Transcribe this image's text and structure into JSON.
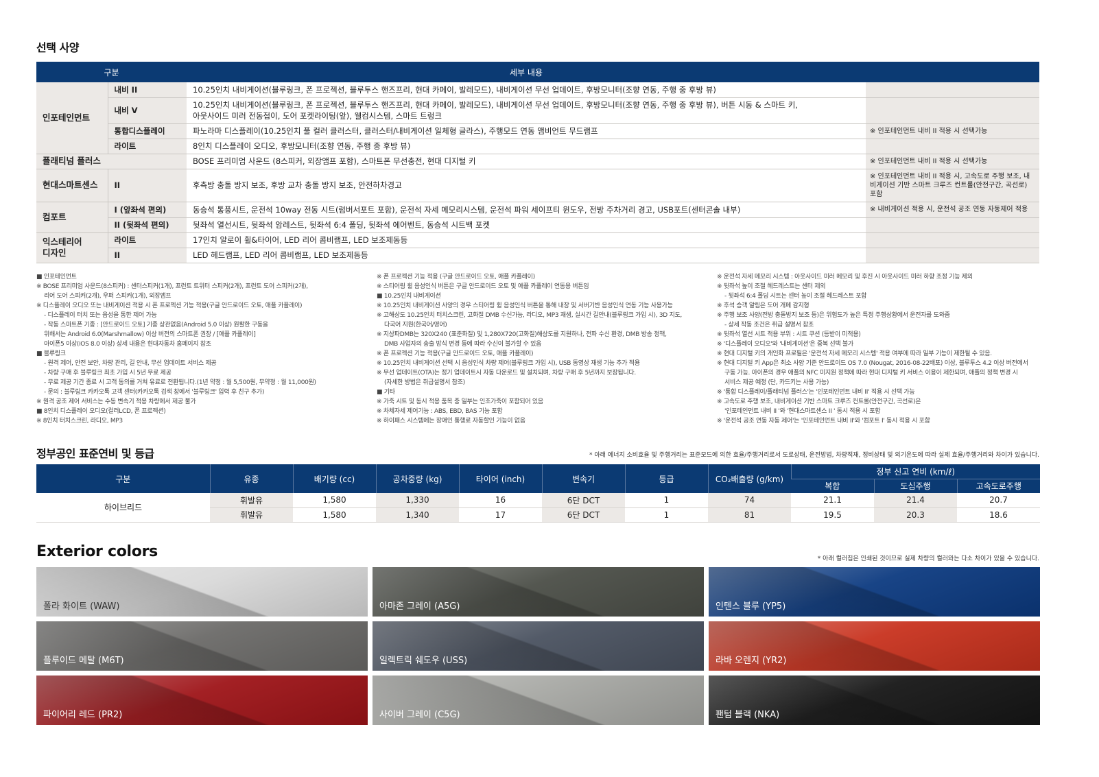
{
  "options": {
    "title": "선택 사양",
    "headers": [
      "구분",
      "세부 내용"
    ],
    "rows": [
      {
        "group": "인포테인먼트",
        "sub": "내비 II",
        "content": "10.25인치 내비게이션(블루링크, 폰 프로젝션, 블루투스 핸즈프리, 현대 카페이, 발레모드), 내비게이션 무선 업데이트, 후방모니터(조향 연동, 주행 중 후방 뷰)",
        "note": ""
      },
      {
        "sub": "내비 V",
        "content": "10.25인치 내비게이션(블루링크, 폰 프로젝션, 블루투스 핸즈프리, 현대 카페이, 발레모드), 내비게이션 무선 업데이트, 후방모니터(조향 연동, 주행 중 후방 뷰), 버튼 시동 & 스마트 키,",
        "content2": "아웃사이드 미러 전동접이, 도어 포켓라이팅(앞), 웰컴시스템, 스마트 트렁크",
        "note": ""
      },
      {
        "sub": "통합디스플레이",
        "content": "파노라마 디스플레이(10.25인치 풀 컬러 클러스터, 클러스터/내비게이션 일체형 글라스), 주행모드 연동 앰비언트 무드램프",
        "note": "※ 인포테인먼트 내비 II 적용 시 선택가능"
      },
      {
        "sub": "라이트",
        "content": "8인치 디스플레이 오디오, 후방모니터(조향 연동, 주행 중 후방 뷰)",
        "note": ""
      },
      {
        "group": "플래티넘 플러스",
        "content": "BOSE 프리미엄 사운드 (8스피커, 외장앰프 포함), 스마트폰 무선충전, 현대 디지털 키",
        "note": "※ 인포테인먼트 내비 II 적용 시 선택가능"
      },
      {
        "group": "현대스마트센스",
        "sub": "II",
        "content": "후측방 충돌 방지 보조, 후방 교차 충돌 방지 보조, 안전하차경고",
        "note": "※ 인포테인먼트 내비 II 적용 시, 고속도로 주행 보조, 내비게이션 기반 스마트 크루즈 컨트롤(안전구간, 곡선로) 포함"
      },
      {
        "group": "컴포트",
        "sub": "I (앞좌석 편의)",
        "content": "동승석 통풍시트, 운전석 10way 전동 시트(럼버서포트 포함), 운전석 자세 메모리시스템, 운전석 파워 세이프티 윈도우, 전방 주차거리 경고, USB포트(센터콘솔 내부)",
        "note": "※ 내비게이션 적용 시, 운전석 공조 연동 자동제어 적용"
      },
      {
        "sub": "II (뒷좌석 편의)",
        "content": "뒷좌석 열선시트, 뒷좌석 암레스트, 뒷좌석 6:4 폴딩, 뒷좌석 에어벤트, 동승석 시트백 포켓",
        "note": ""
      },
      {
        "group": "익스테리어 디자인",
        "sub": "라이트",
        "content": "17인치 알로이 휠&타이어, LED 리어 콤비램프, LED 보조제동등",
        "note": ""
      },
      {
        "sub": "II",
        "content": "LED 헤드램프, LED 리어 콤비램프, LED 보조제동등",
        "note": ""
      }
    ]
  },
  "notes": [
    [
      {
        "t": "■ 인포테인먼트"
      },
      {
        "t": "※ BOSE 프리미엄 사운드(8스피커) : 센터스피커(1개), 프런트 트위터 스피커(2개), 프런트 도어 스피커(2개),"
      },
      {
        "t": "리어 도어 스피커(2개), 우퍼 스피커(1개), 외장앰프",
        "i": true
      },
      {
        "t": "※ 디스플레이 오디오 또는 내비게이션 적용 시 폰 프로젝션 기능 적용(구글 안드로이드 오토, 애플 카플레이)"
      },
      {
        "t": "- 디스플레이 터치 또는 음성을 통한 제어 가능",
        "i": true
      },
      {
        "t": "- 작동 스마트폰 기종 : [안드로이드 오토] 기종 상관없음(Android 5.0 이상) 원활한 구동을",
        "i": true
      },
      {
        "t": "위해서는 Android 6.0(Marshmallow) 이상 버전의 스마트폰 권장 / [애플 카플레이]",
        "i": true
      },
      {
        "t": "아이폰5 이상(iOS 8.0 이상) 상세 내용은 현대자동차 홈페이지 참조",
        "i": true
      },
      {
        "t": "■ 블루링크"
      },
      {
        "t": "- 원격 제어, 안전 보안, 차량 관리, 길 안내, 무선 업데이트 서비스 제공",
        "i": true
      },
      {
        "t": "- 차량 구매 후 블루링크 최초 가입 시 5년 무료 제공",
        "i": true
      },
      {
        "t": "- 무료 제공 기간 종료 시 고객 동의를 거쳐 유료로 전환됩니다.(1년 약정 : 월 5,500원, 무약정 : 월 11,000원)",
        "i": true
      },
      {
        "t": "- 문의 : 블루링크 카카오톡 고객 센터(카카오톡 검색 창에서 '블루링크' 입력 후 친구 추가)",
        "i": true
      },
      {
        "t": "※ 원격 공조 제어 서비스는 수동 변속기 적용 차량에서 제공 불가"
      },
      {
        "t": "■ 8인치 디스플레이 오디오(컬러LCD, 폰 프로젝션)"
      },
      {
        "t": "※ 8인치 터치스크린, 라디오, MP3"
      }
    ],
    [
      {
        "t": "※ 폰 프로젝션 기능 적용 (구글 안드로이드 오토, 애플 카플레이)"
      },
      {
        "t": "※ 스티어링 휠 음성인식 버튼은 구글 안드로이드 오토 및 애플 카플레이 연동용 버튼임"
      },
      {
        "t": "■ 10.25인치 내비게이션"
      },
      {
        "t": "※ 10.25인치 내비게이션 사양의 경우 스티어링 휠 음성인식 버튼을 통해 내장 및 서버기반 음성인식 연동 기능 사용가능"
      },
      {
        "t": "※ 고해상도 10.25인치 터치스크린, 고화질 DMB 수신가능, 라디오, MP3 재생, 실시간 길안내(블루링크 가입 시), 3D 지도,"
      },
      {
        "t": "다국어 지원(한국어/영어)",
        "i": true
      },
      {
        "t": "※ 지상파DMB는 320X240 (표준화질) 및 1,280X720(고화질)해상도를 지원하나, 전파 수신 환경, DMB 방송 정책,"
      },
      {
        "t": "DMB 사업자의 송출 방식 변경 등에 따라 수신이 불가할 수 있음",
        "i": true
      },
      {
        "t": "※ 폰 프로젝션 기능 적용(구글 안드로이드 오토, 애플 카플레이)"
      },
      {
        "t": "※ 10.25인치 내비게이션 선택 시 음성인식 차량 제어(블루링크 가입 시), USB 동영상 재생 기능 추가 적용"
      },
      {
        "t": "※ 무선 업데이트(OTA)는 정기 업데이트시 자동 다운로드 및 설치되며, 차량 구매 후 5년까지 보장됩니다."
      },
      {
        "t": "(자세한 방법은 취급설명서 참조)",
        "i": true
      },
      {
        "t": "■ 기타"
      },
      {
        "t": "※ 가죽 시트 및 동시 적용 품목 중 일부는 인조가죽이 포함되어 있음"
      },
      {
        "t": "※ 차체자세 제어기능 : ABS, EBD, BAS 기능 포함"
      },
      {
        "t": "※ 하이패스 시스템에는 장애인 통행료 자동할인 기능이 없음"
      }
    ],
    [
      {
        "t": "※ 운전석 자세 메모리 시스템 : 아웃사이드 미러 메모리 및 후진 시 아웃사이드 미러 하향 조정 기능 제외"
      },
      {
        "t": "※ 뒷좌석 높이 조절 헤드레스트는 센터 제외"
      },
      {
        "t": "- 뒷좌석 6:4 폴딩 시트는 센터 높이 조절 헤드레스트 포함",
        "i": true
      },
      {
        "t": "※ 후석 승객 알림은 도어 개폐 감지형"
      },
      {
        "t": "※ 주행 보조 사양(전방 충돌방지 보조 등)은 위험도가 높은 특정 주행상황에서 운전자를 도와줌"
      },
      {
        "t": "- 상세 작동 조건은 취급 설명서 참조",
        "i": true
      },
      {
        "t": "※ 뒷좌석 열선 시트 적용 부위 : 시트 쿠션 (등받이 미적용)"
      },
      {
        "t": "※ '디스플레이 오디오'와 '내비게이션'은 중복 선택 불가"
      },
      {
        "t": "※ 현대 디지털 키의 개인화 프로필은 '운전석 자세 메모리 시스템' 적용 여부에 따라 일부 기능이 제한될 수 있음."
      },
      {
        "t": "※ 현대 디지털 키 App은 최소 사양 기준 안드로이드 OS 7.0 (Nougat, 2016-08-22배포) 이상, 블루투스 4.2 이상 버전에서"
      },
      {
        "t": "구동 가능. 아이폰의 경우 애플의 NFC 미지원 정책에 따라 현대 디지털 키 서비스 이용이 제한되며, 애플의 정책 변경 시",
        "i": true
      },
      {
        "t": "서비스 제공 예정 (단, 카드키는 사용 가능)",
        "i": true
      },
      {
        "t": "※ '통합 디스플레이/플래티넘 플러스'는 '인포테인먼트 내비 II' 적용 시 선택 가능"
      },
      {
        "t": "※ 고속도로 주행 보조, 내비게이션 기반 스마트 크루즈 컨트롤(안전구간, 곡선로)은"
      },
      {
        "t": "'인포테인먼트 내비 II '와 '현대스마트센스 II ' 동시 적용 시 포함",
        "i": true
      },
      {
        "t": "※ '운전석 공조 연동 자동 제어'는 '인포테인먼트 내비 II'와 '컴포트 I' 동시 적용 시 포함"
      }
    ]
  ],
  "fuel": {
    "title": "정부공인 표준연비 및 등급",
    "disclaimer": "* 아래 에너지 소비효율 및 주행거리는 표준모드에 의한 효율/주행거리로서 도로상태, 운전방법, 차량적재, 정비상태 및 외기온도에 따라 실제 효율/주행거리와 차이가 있습니다.",
    "headers": [
      "구분",
      "유종",
      "배기량 (cc)",
      "공차중량 (kg)",
      "타이어 (inch)",
      "변속기",
      "등급",
      "CO₂배출량 (g/km)"
    ],
    "group_header": "정부 신고 연비 (km/ℓ)",
    "sub_headers": [
      "복합",
      "도심주행",
      "고속도로주행"
    ],
    "model": "하이브리드",
    "rows": [
      [
        "휘발유",
        "1,580",
        "1,330",
        "16",
        "6단 DCT",
        "1",
        "74",
        "21.1",
        "21.4",
        "20.7"
      ],
      [
        "휘발유",
        "1,580",
        "1,340",
        "17",
        "6단 DCT",
        "1",
        "81",
        "19.5",
        "20.3",
        "18.6"
      ]
    ]
  },
  "colors": {
    "title": "Exterior colors",
    "disclaimer": "* 아래 컬러칩은 인쇄된 것이므로 실제 차량의 컬러와는 다소 차이가 있을 수 있습니다.",
    "items": [
      {
        "name": "폴라 화이트 (WAW)",
        "hex": "#d9d9d9"
      },
      {
        "name": "아마존 그레이 (A5G)",
        "hex": "#4b4e47"
      },
      {
        "name": "인텐스 블루 (YP5)",
        "hex": "#0c3a80"
      },
      {
        "name": "플루이드 메탈 (M6T)",
        "hex": "#6b6a68"
      },
      {
        "name": "일렉트릭 쉐도우 (USS)",
        "hex": "#4a5260"
      },
      {
        "name": "라바 오렌지 (YR2)",
        "hex": "#c8321e"
      },
      {
        "name": "파이어리 레드 (PR2)",
        "hex": "#9e1418"
      },
      {
        "name": "사이버 그레이 (C5G)",
        "hex": "#a7a8a4"
      },
      {
        "name": "팬텀 블랙 (NKA)",
        "hex": "#161616"
      }
    ]
  }
}
